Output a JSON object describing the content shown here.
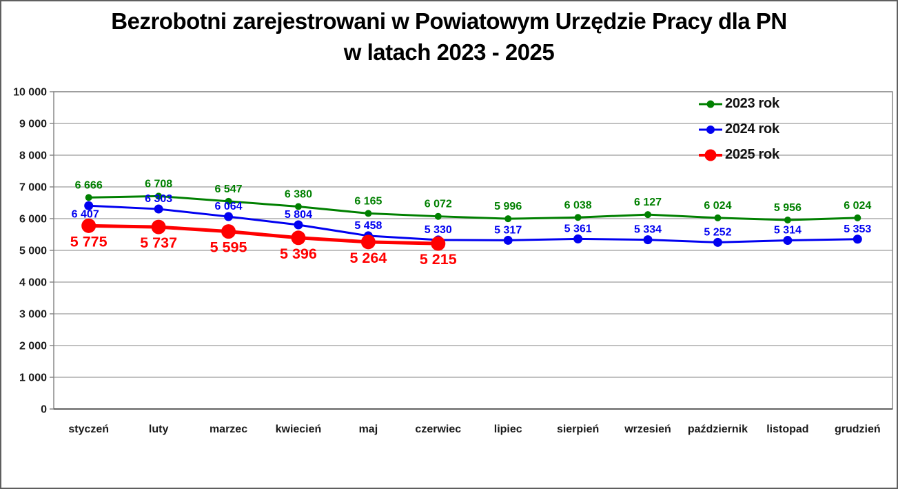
{
  "title": {
    "line1": "Bezrobotni zarejestrowani w Powiatowym Urzędzie Pracy dla PN",
    "line2": "w latach 2023 - 2025"
  },
  "chart_data": {
    "type": "line",
    "title": "Bezrobotni zarejestrowani w Powiatowym Urzędzie Pracy dla PN w latach 2023 - 2025",
    "categories": [
      "styczeń",
      "luty",
      "marzec",
      "kwiecień",
      "maj",
      "czerwiec",
      "lipiec",
      "sierpień",
      "wrzesień",
      "październik",
      "listopad",
      "grudzień"
    ],
    "series": [
      {
        "name": "2023 rok",
        "color": "#008000",
        "values": [
          6666,
          6708,
          6547,
          6380,
          6165,
          6072,
          5996,
          6038,
          6127,
          6024,
          5956,
          6024
        ]
      },
      {
        "name": "2024 rok",
        "color": "#0000f0",
        "values": [
          6407,
          6303,
          6064,
          5804,
          5458,
          5330,
          5317,
          5361,
          5334,
          5252,
          5314,
          5353
        ]
      },
      {
        "name": "2025 rok",
        "color": "#ff0000",
        "values": [
          5775,
          5737,
          5595,
          5396,
          5264,
          5215
        ]
      }
    ],
    "ylim": [
      0,
      10000
    ],
    "ytick_step": 1000,
    "grid": "horizontal",
    "gridline_color": "#9c9c9c",
    "axis_color": "#404040",
    "plot_border_color": "#808080",
    "text_color": "#1a1a1a",
    "legend_position": "inside-top-right",
    "value_labels": true
  }
}
